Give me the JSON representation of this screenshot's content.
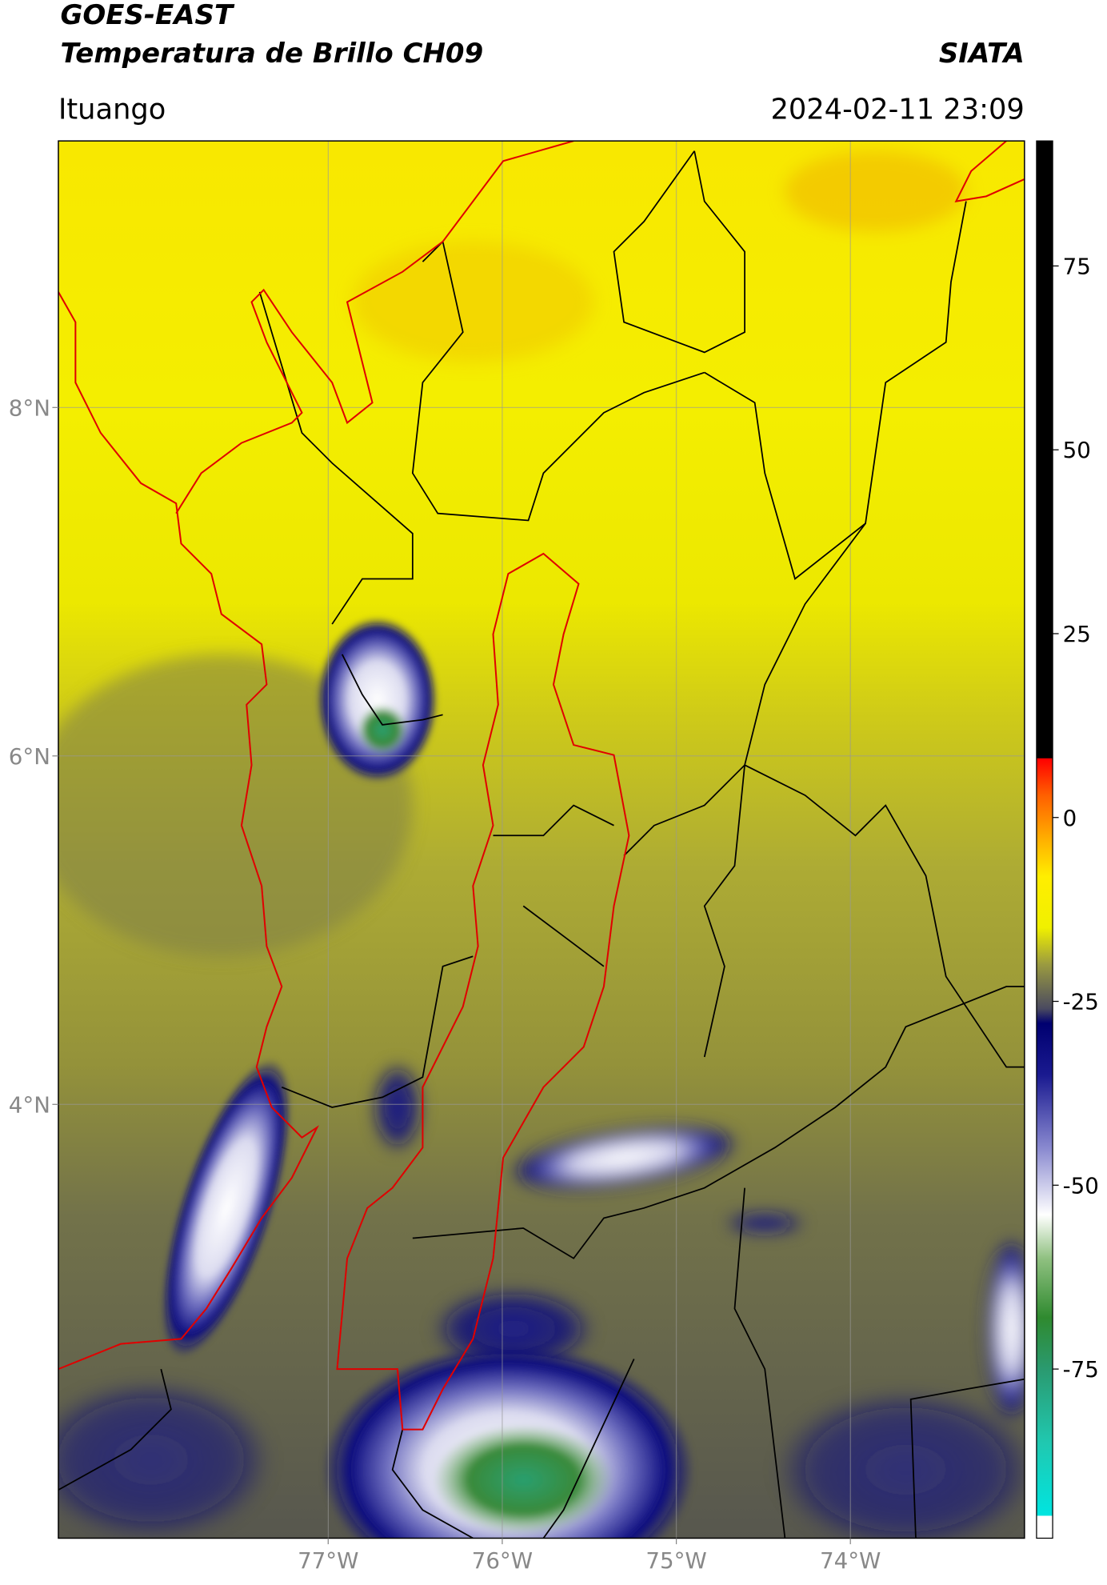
{
  "header": {
    "title": "GOES-EAST",
    "subtitle": "Temperatura de Brillo CH09",
    "brand": "SIATA",
    "region": "Ituango",
    "datetime": "2024-02-11 23:09"
  },
  "map": {
    "xlim": [
      -78.55,
      -73.0
    ],
    "ylim": [
      1.51,
      9.53
    ],
    "xticks": [
      {
        "value": -77,
        "label": "77°W"
      },
      {
        "value": -76,
        "label": "76°W"
      },
      {
        "value": -75,
        "label": "75°W"
      },
      {
        "value": -74,
        "label": "74°W"
      }
    ],
    "yticks": [
      {
        "value": 8,
        "label": "8°N"
      },
      {
        "value": 6,
        "label": "6°N"
      },
      {
        "value": 4,
        "label": "4°N"
      }
    ],
    "grid": true
  },
  "colorbar": {
    "clim": [
      -98,
      92
    ],
    "ticks": [
      75,
      50,
      25,
      0,
      -25,
      -50,
      -75
    ],
    "colormap": [
      [
        -98,
        "#ffffff"
      ],
      [
        -95,
        "#ffffff"
      ],
      [
        -94.9,
        "#00e5e0"
      ],
      [
        -85,
        "#20c8b0"
      ],
      [
        -75,
        "#2a9a70"
      ],
      [
        -68,
        "#2f8a2f"
      ],
      [
        -60,
        "#8fc080"
      ],
      [
        -54,
        "#ffffff"
      ],
      [
        -45,
        "#8a8ad0"
      ],
      [
        -35,
        "#1a1a90"
      ],
      [
        -28,
        "#000070"
      ],
      [
        -26,
        "#4a4a60"
      ],
      [
        -20,
        "#9a9a40"
      ],
      [
        -15,
        "#f0f000"
      ],
      [
        -8,
        "#ffee00"
      ],
      [
        -3,
        "#ffb000"
      ],
      [
        3,
        "#ff6000"
      ],
      [
        8,
        "#ff0000"
      ],
      [
        8.1,
        "#000000"
      ],
      [
        92,
        "#000000"
      ]
    ]
  }
}
